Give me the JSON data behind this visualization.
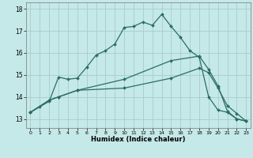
{
  "xlabel": "Humidex (Indice chaleur)",
  "background_color": "#c5e8e8",
  "grid_color": "#a8cccc",
  "line_color": "#2a6e62",
  "x_ticks": [
    0,
    1,
    2,
    3,
    4,
    5,
    6,
    7,
    8,
    9,
    10,
    11,
    12,
    13,
    14,
    15,
    16,
    17,
    18,
    19,
    20,
    21,
    22,
    23
  ],
  "ylim": [
    12.6,
    18.3
  ],
  "xlim": [
    -0.5,
    23.5
  ],
  "yticks": [
    13,
    14,
    15,
    16,
    17,
    18
  ],
  "line1_x": [
    0,
    1,
    2,
    3,
    4,
    5,
    6,
    7,
    8,
    9,
    10,
    11,
    12,
    13,
    14,
    15,
    16,
    17,
    18,
    19,
    20,
    21,
    22,
    23
  ],
  "line1_y": [
    13.3,
    13.55,
    13.8,
    14.9,
    14.8,
    14.85,
    15.35,
    15.9,
    16.1,
    16.4,
    17.15,
    17.2,
    17.4,
    17.25,
    17.75,
    17.2,
    16.7,
    16.1,
    15.8,
    14.0,
    13.4,
    13.3,
    13.0,
    12.9
  ],
  "line2_x": [
    0,
    2,
    3,
    5,
    10,
    15,
    18,
    19,
    20,
    21,
    22,
    23
  ],
  "line2_y": [
    13.3,
    13.85,
    14.0,
    14.3,
    14.8,
    15.65,
    15.85,
    15.25,
    14.5,
    13.35,
    13.0,
    12.9
  ],
  "line3_x": [
    0,
    2,
    3,
    5,
    10,
    15,
    18,
    19,
    20,
    21,
    22,
    23
  ],
  "line3_y": [
    13.3,
    13.85,
    14.0,
    14.3,
    14.4,
    14.85,
    15.3,
    15.1,
    14.4,
    13.6,
    13.25,
    12.9
  ]
}
